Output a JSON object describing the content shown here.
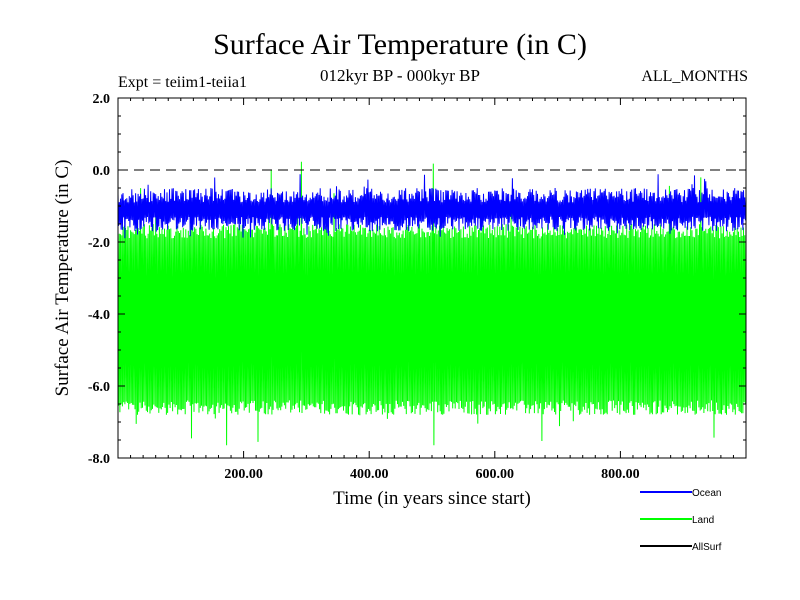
{
  "chart_data": {
    "type": "line",
    "title": "Surface Air Temperature (in C)",
    "subtitle": "012kyr BP - 000kyr BP",
    "expt_label": "Expt = teiim1-teiia1",
    "months_label": "ALL_MONTHS",
    "xlabel": "Time (in years since start)",
    "ylabel": "Surface Air Temperature (in C)",
    "xlim": [
      0,
      1000
    ],
    "ylim": [
      -8.0,
      2.0
    ],
    "x_ticks": [
      200,
      400,
      600,
      800
    ],
    "x_tick_labels": [
      "200.00",
      "400.00",
      "600.00",
      "800.00"
    ],
    "y_ticks": [
      2,
      0,
      -2,
      -4,
      -6,
      -8
    ],
    "y_tick_labels": [
      "2.0",
      "0.0",
      "-2.0",
      "-4.0",
      "-6.0",
      "-8.0"
    ],
    "reference_line": {
      "y": 0.0,
      "style": "dashed"
    },
    "grid": false,
    "legend_position": "bottom-right",
    "series": [
      {
        "name": "Land",
        "color": "#00ff00",
        "min": -7.8,
        "max": 0.3,
        "typical_low": -6.8,
        "typical_high": -1.5
      },
      {
        "name": "Ocean",
        "color": "#0000ff",
        "min": -1.9,
        "max": -0.1,
        "typical_low": -1.7,
        "typical_high": -0.5
      },
      {
        "name": "AllSurf",
        "color": "#000000"
      }
    ]
  }
}
